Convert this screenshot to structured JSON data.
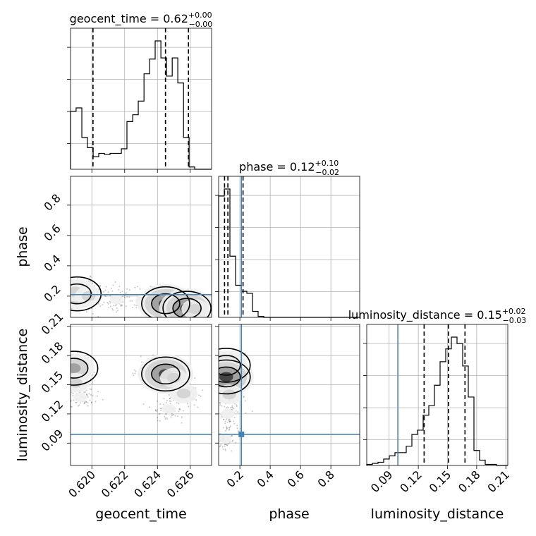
{
  "chart_data": {
    "type": "corner",
    "parameters": [
      "geocent_time",
      "phase",
      "luminosity_distance"
    ],
    "axis_labels": {
      "geocent_time": "geocent_time",
      "phase": "phase",
      "luminosity_distance": "luminosity_distance"
    },
    "ranges": {
      "geocent_time": [
        0.6187,
        0.6273
      ],
      "phase": [
        0.06,
        0.99
      ],
      "luminosity_distance": [
        0.067,
        0.212
      ]
    },
    "ticks": {
      "geocent_time": [
        "0.620",
        "0.622",
        "0.624",
        "0.626"
      ],
      "phase": [
        "0.2",
        "0.4",
        "0.6",
        "0.8"
      ],
      "luminosity_distance": [
        "0.09",
        "0.12",
        "0.15",
        "0.18",
        "0.21"
      ]
    },
    "truths": {
      "phase": 0.21,
      "luminosity_distance": 0.099
    },
    "titles": {
      "geocent_time": {
        "name": "geocent_time",
        "value": "0.62",
        "plus": "+0.00",
        "minus": "−0.00"
      },
      "phase": {
        "name": "phase",
        "value": "0.12",
        "plus": "+0.10",
        "minus": "−0.02"
      },
      "luminosity_distance": {
        "name": "luminosity_distance",
        "value": "0.15",
        "plus": "+0.02",
        "minus": "−0.03"
      }
    },
    "quantiles": {
      "geocent_time": [
        0.62007,
        0.62449,
        0.62589
      ],
      "phase": [
        0.099,
        0.121,
        0.221
      ],
      "luminosity_distance": [
        0.126,
        0.151,
        0.168
      ]
    },
    "histograms": {
      "geocent_time": {
        "edges": [
          0.6187,
          0.61904,
          0.61939,
          0.61973,
          0.62008,
          0.62042,
          0.62077,
          0.62111,
          0.62145,
          0.6218,
          0.62214,
          0.62249,
          0.62283,
          0.62318,
          0.62352,
          0.62386,
          0.62421,
          0.62455,
          0.6249,
          0.62524,
          0.62559,
          0.62593,
          0.62627,
          0.62662,
          0.62696,
          0.6273
        ],
        "counts": [
          51,
          54,
          28,
          19,
          11,
          14,
          13,
          14,
          14,
          18,
          42,
          48,
          60,
          84,
          97,
          113,
          98,
          82,
          98,
          76,
          28,
          2,
          0,
          0,
          0
        ]
      },
      "phase": {
        "edges": [
          0.06,
          0.0972,
          0.1344,
          0.1716,
          0.2088,
          0.246,
          0.2832,
          0.3204,
          0.3576,
          0.3948,
          0.432,
          0.4692,
          0.5064,
          0.5436,
          0.5808,
          0.618,
          0.6552,
          0.6924,
          0.7296,
          0.7668,
          0.804,
          0.8412,
          0.8784,
          0.9156,
          0.9528,
          0.99
        ],
        "counts": [
          121,
          128,
          61,
          32,
          26,
          24,
          6,
          1,
          0,
          0,
          0,
          0,
          0,
          0,
          0,
          0,
          0,
          0,
          0,
          0,
          0,
          0,
          0,
          0,
          0
        ]
      },
      "luminosity_distance": {
        "edges": [
          0.067,
          0.0728,
          0.0786,
          0.0844,
          0.0902,
          0.096,
          0.1018,
          0.1076,
          0.1134,
          0.1192,
          0.125,
          0.1308,
          0.1366,
          0.1424,
          0.1482,
          0.154,
          0.1598,
          0.1656,
          0.1714,
          0.1772,
          0.183,
          0.1888,
          0.1946,
          0.2004,
          0.2062,
          0.212
        ],
        "counts": [
          1,
          2,
          3,
          6,
          9,
          12,
          12,
          18,
          29,
          33,
          47,
          56,
          75,
          97,
          109,
          120,
          114,
          93,
          64,
          14,
          5,
          1,
          1,
          0,
          0
        ]
      }
    },
    "panels_2d": [
      {
        "x": "geocent_time",
        "y": "phase",
        "density": [
          {
            "x": 0.6191,
            "y": 0.215,
            "level": 3
          },
          {
            "x": 0.619,
            "y": 0.23,
            "level": 2
          },
          {
            "x": 0.6198,
            "y": 0.2,
            "level": 2
          },
          {
            "x": 0.6215,
            "y": 0.18,
            "level": 1
          },
          {
            "x": 0.6235,
            "y": 0.165,
            "level": 2
          },
          {
            "x": 0.6245,
            "y": 0.15,
            "level": 4
          },
          {
            "x": 0.6252,
            "y": 0.14,
            "level": 2
          },
          {
            "x": 0.6258,
            "y": 0.12,
            "level": 4
          },
          {
            "x": 0.6263,
            "y": 0.115,
            "level": 2
          }
        ]
      },
      {
        "x": "geocent_time",
        "y": "luminosity_distance",
        "density": [
          {
            "x": 0.6189,
            "y": 0.167,
            "level": 3
          },
          {
            "x": 0.619,
            "y": 0.152,
            "level": 2
          },
          {
            "x": 0.6193,
            "y": 0.137,
            "level": 1
          },
          {
            "x": 0.6236,
            "y": 0.165,
            "level": 1
          },
          {
            "x": 0.624,
            "y": 0.163,
            "level": 2
          },
          {
            "x": 0.6245,
            "y": 0.161,
            "level": 4
          },
          {
            "x": 0.625,
            "y": 0.157,
            "level": 2
          },
          {
            "x": 0.6256,
            "y": 0.141,
            "level": 2
          },
          {
            "x": 0.6247,
            "y": 0.125,
            "level": 1
          }
        ]
      },
      {
        "x": "phase",
        "y": "luminosity_distance",
        "density": [
          {
            "x": 0.11,
            "y": 0.17,
            "level": 3
          },
          {
            "x": 0.11,
            "y": 0.158,
            "level": 4
          },
          {
            "x": 0.13,
            "y": 0.14,
            "level": 2
          },
          {
            "x": 0.12,
            "y": 0.12,
            "level": 1
          },
          {
            "x": 0.1,
            "y": 0.095,
            "level": 1
          }
        ]
      }
    ]
  }
}
